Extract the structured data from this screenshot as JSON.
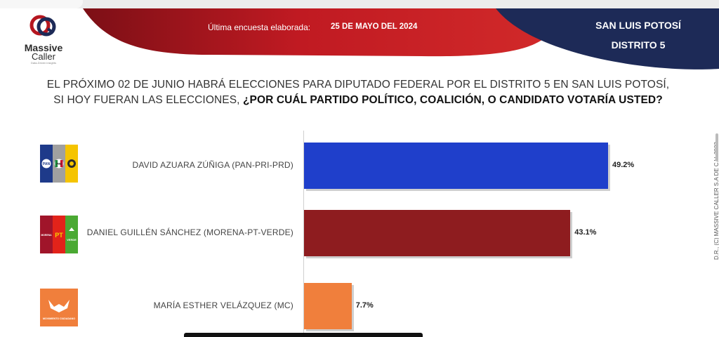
{
  "header": {
    "brand_name": "Massive",
    "brand_sub": "Caller",
    "brand_tag": "Data-Driven insights",
    "survey_label": "Última encuesta elaborada:",
    "survey_date": "25 DE MAYO DEL 2024",
    "state": "SAN LUIS POTOSÍ",
    "district": "DISTRITO 5"
  },
  "question": {
    "line1": "EL PRÓXIMO 02 DE JUNIO HABRÁ ELECCIONES PARA DIPUTADO FEDERAL POR EL DISTRITO 5 EN SAN LUIS POTOSÍ,",
    "line2_plain": "SI HOY FUERAN LAS ELECCIONES, ",
    "line2_bold": "¿POR CUÁL PARTIDO POLÍTICO, COALICIÓN, O CANDIDATO VOTARÍA USTED?"
  },
  "colors": {
    "header_red": "#b5161f",
    "header_navy": "#1d2a57",
    "bar_blue": "#1f3fcb",
    "bar_red": "#8e1c1f",
    "bar_orange": "#f07f3c"
  },
  "logos": {
    "pan": "PAN",
    "pri": "PRI",
    "pt": "PT",
    "morena": "MORENA",
    "verde": "VERDE",
    "mc": "MOVIMIENTO CIUDADANO"
  },
  "chart_data": {
    "type": "bar",
    "orientation": "horizontal",
    "categories": [
      "DAVID AZUARA ZÚÑIGA (PAN-PRI-PRD)",
      "DANIEL GUILLÉN SÁNCHEZ (MORENA-PT-VERDE)",
      "MARÍA ESTHER VELÁZQUEZ (MC)"
    ],
    "values": [
      49.2,
      43.1,
      7.7
    ],
    "value_labels": [
      "49.2%",
      "43.1%",
      "7.7%"
    ],
    "bar_colors": [
      "#1f3fcb",
      "#8e1c1f",
      "#f07f3c"
    ],
    "xlim": [
      0,
      50
    ],
    "grid": false,
    "title": "",
    "xlabel": "",
    "ylabel": ""
  },
  "footer": {
    "copyright": "D.R., (C) MASSIVE CALLER S.A DE C.V. 2023"
  }
}
